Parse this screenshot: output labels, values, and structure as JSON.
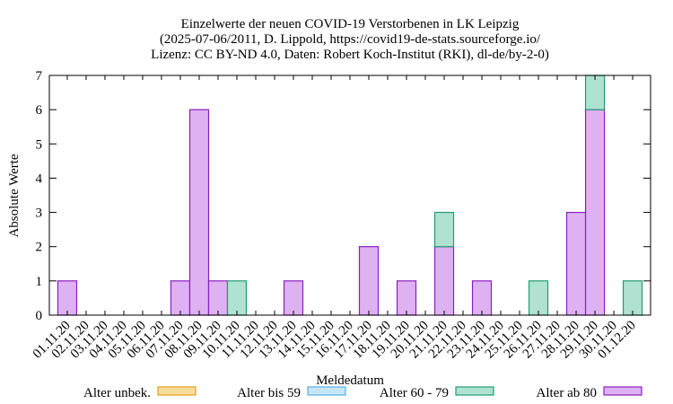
{
  "chart_data": {
    "type": "bar",
    "stacked": true,
    "title": "Einzelwerte der neuen COVID-19 Verstorbenen in LK Leipzig",
    "subtitle": [
      "(2025-07-06/2011, D. Lippold, https://covid19-de-stats.sourceforge.io/",
      "Lizenz: CC BY-ND 4.0, Daten: Robert Koch-Institut (RKI), dl-de/by-2-0)"
    ],
    "x_label": "Meldedatum",
    "y_label": "Absolute Werte",
    "categories": [
      "01.11.20",
      "02.11.20",
      "03.11.20",
      "04.11.20",
      "05.11.20",
      "06.11.20",
      "07.11.20",
      "08.11.20",
      "09.11.20",
      "10.11.20",
      "11.11.20",
      "12.11.20",
      "13.11.20",
      "14.11.20",
      "15.11.20",
      "16.11.20",
      "17.11.20",
      "18.11.20",
      "19.11.20",
      "20.11.20",
      "21.11.20",
      "22.11.20",
      "23.11.20",
      "24.11.20",
      "25.11.20",
      "26.11.20",
      "27.11.20",
      "28.11.20",
      "29.11.20",
      "30.11.20",
      "01.12.20"
    ],
    "series": [
      {
        "name": "Alter unbek.",
        "color": "#f9dd9c",
        "edge": "#e0a020",
        "values": [
          0,
          0,
          0,
          0,
          0,
          0,
          0,
          0,
          0,
          0,
          0,
          0,
          0,
          0,
          0,
          0,
          0,
          0,
          0,
          0,
          0,
          0,
          0,
          0,
          0,
          0,
          0,
          0,
          0,
          0,
          0
        ]
      },
      {
        "name": "Alter bis 59",
        "color": "#c6e6f8",
        "edge": "#5aafe0",
        "values": [
          0,
          0,
          0,
          0,
          0,
          0,
          0,
          0,
          0,
          0,
          0,
          0,
          0,
          0,
          0,
          0,
          0,
          0,
          0,
          0,
          0,
          0,
          0,
          0,
          0,
          0,
          0,
          0,
          0,
          0,
          0
        ]
      },
      {
        "name": "Alter 60 - 79",
        "color": "#b0e2d2",
        "edge": "#1f9e6e",
        "values": [
          0,
          0,
          0,
          0,
          0,
          0,
          0,
          0,
          0,
          1,
          0,
          0,
          0,
          0,
          0,
          0,
          0,
          0,
          0,
          0,
          1,
          0,
          0,
          0,
          0,
          1,
          0,
          0,
          1,
          0,
          1
        ]
      },
      {
        "name": "Alter ab 80",
        "color": "#deb2f2",
        "edge": "#8a1ec0",
        "values": [
          1,
          0,
          0,
          0,
          0,
          0,
          1,
          6,
          1,
          0,
          0,
          0,
          1,
          0,
          0,
          0,
          2,
          0,
          1,
          0,
          2,
          0,
          1,
          0,
          0,
          0,
          0,
          3,
          6,
          0,
          0
        ]
      }
    ],
    "ylim": [
      0,
      7
    ],
    "yticks": [
      0,
      1,
      2,
      3,
      4,
      5,
      6,
      7
    ]
  }
}
